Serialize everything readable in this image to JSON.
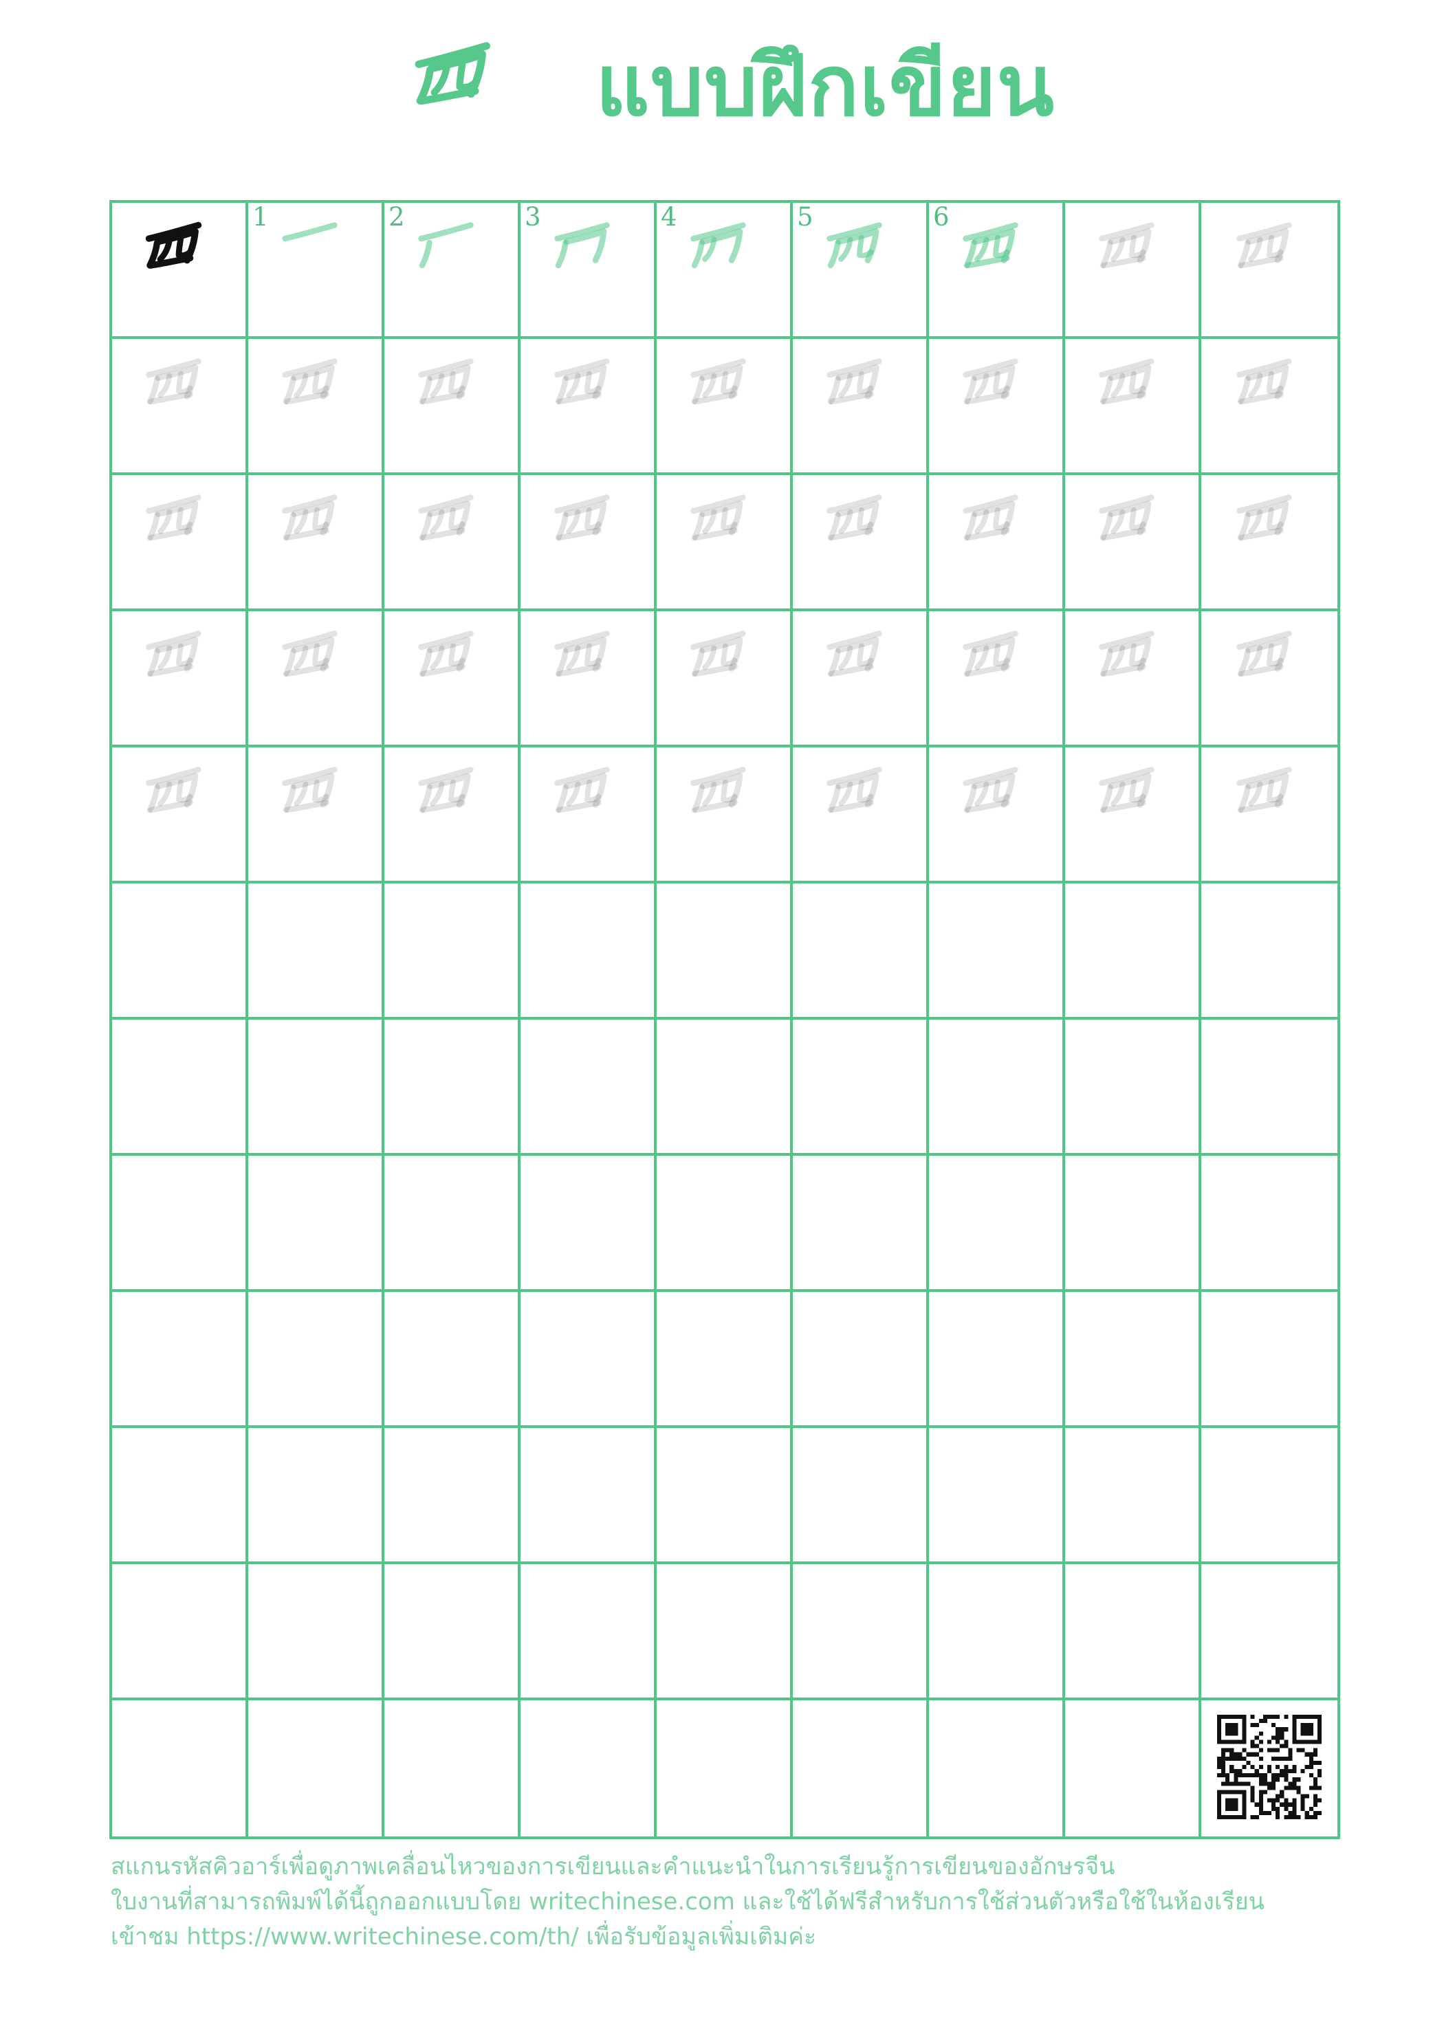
{
  "header": {
    "character": "西",
    "title": "แบบฝึกเขียน"
  },
  "stroke_order": {
    "character": "西",
    "stroke_count": 6,
    "step_numbers": [
      "1",
      "2",
      "3",
      "4",
      "5",
      "6"
    ]
  },
  "practice_grid": {
    "columns": 9,
    "rows": 12,
    "trace_cells_in_first_row": 2,
    "trace_rows": 4,
    "empty_rows": 7
  },
  "qr_code": {
    "location": "bottom-right-cell"
  },
  "footer": {
    "lines": [
      "สแกนรหัสคิวอาร์เพื่อดูภาพเคลื่อนไหวของการเขียนและคำแนะนำในการเรียนรู้การเขียนของอักษรจีน",
      "ใบงานที่สามารถพิมพ์ได้นี้ถูกออกแบบโดย writechinese.com และใช้ได้ฟรีสำหรับการใช้ส่วนตัวหรือใช้ในห้องเรียน",
      "เข้าชม https://www.writechinese.com/th/ เพื่อรับข้อมูลเพิ่มเติมค่ะ"
    ]
  },
  "colors": {
    "accent_green": "#57c88c",
    "grid_line": "#50c585",
    "stroke_step_green": "#52c788",
    "step_number_green": "#4fbc83",
    "trace_gray": "#e0e0e0",
    "example_black": "#111111",
    "footer_green": "#7fd2a4"
  }
}
